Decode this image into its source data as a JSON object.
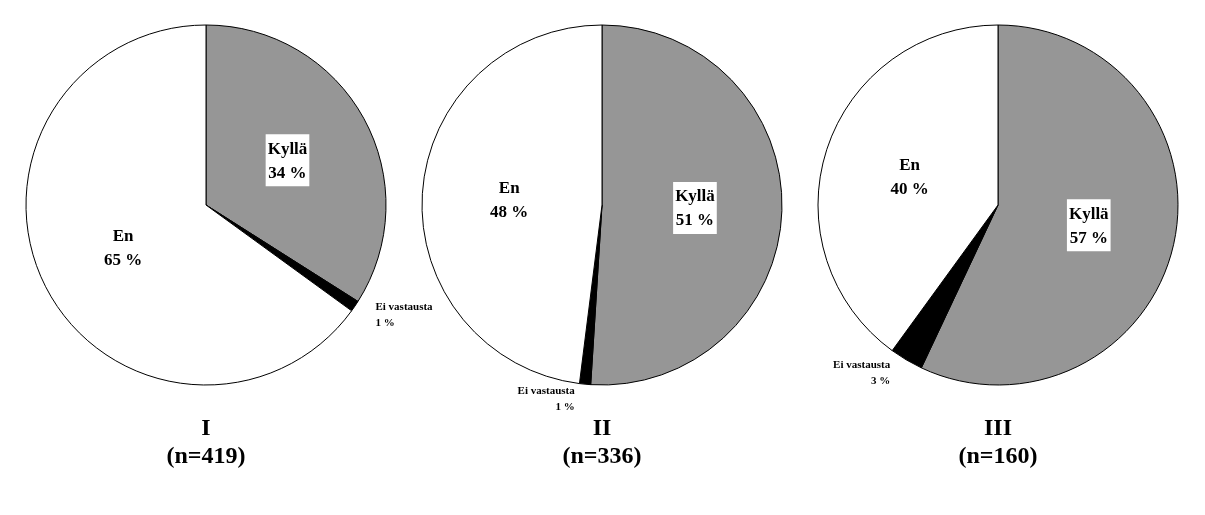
{
  "chart_data": [
    {
      "type": "pie",
      "title": "I",
      "subtitle": "(n=419)",
      "categories": [
        "Kyllä",
        "Ei vastausta",
        "En"
      ],
      "values": [
        34,
        1,
        65
      ],
      "colors": [
        "#969696",
        "#000000",
        "#ffffff"
      ],
      "value_labels": [
        "34 %",
        "1 %",
        "65 %"
      ]
    },
    {
      "type": "pie",
      "title": "II",
      "subtitle": "(n=336)",
      "categories": [
        "Kyllä",
        "Ei vastausta",
        "En"
      ],
      "values": [
        51,
        1,
        48
      ],
      "colors": [
        "#969696",
        "#000000",
        "#ffffff"
      ],
      "value_labels": [
        "51 %",
        "1 %",
        "48 %"
      ]
    },
    {
      "type": "pie",
      "title": "III",
      "subtitle": "(n=160)",
      "categories": [
        "Kyllä",
        "Ei vastausta",
        "En"
      ],
      "values": [
        57,
        3,
        40
      ],
      "colors": [
        "#969696",
        "#000000",
        "#ffffff"
      ],
      "value_labels": [
        "57 %",
        "3 %",
        "40 %"
      ]
    }
  ]
}
